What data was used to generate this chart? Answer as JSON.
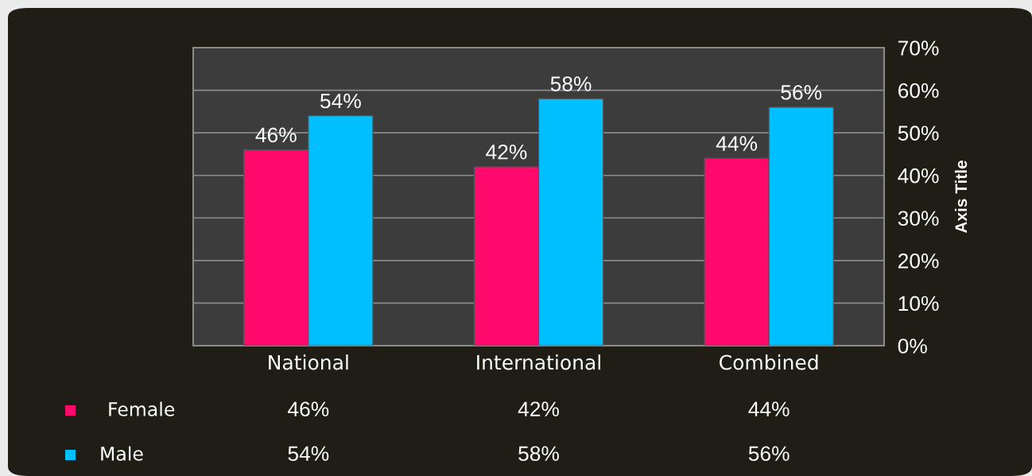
{
  "chart_data": {
    "type": "bar",
    "ylabel": "Axis Title",
    "categories": [
      "National",
      "International",
      "Combined"
    ],
    "series": [
      {
        "name": "Female",
        "color": "#ff0a6c",
        "values": [
          46,
          42,
          44
        ],
        "value_labels": [
          "46%",
          "42%",
          "44%"
        ]
      },
      {
        "name": "Male",
        "color": "#00bfff",
        "values": [
          54,
          58,
          56
        ],
        "value_labels": [
          "54%",
          "58%",
          "56%"
        ]
      }
    ],
    "ylim": [
      0,
      70
    ],
    "yticks": [
      {
        "value": 0,
        "label": "0%"
      },
      {
        "value": 10,
        "label": "10%"
      },
      {
        "value": 20,
        "label": "20%"
      },
      {
        "value": 30,
        "label": "30%"
      },
      {
        "value": 40,
        "label": "40%"
      },
      {
        "value": 50,
        "label": "50%"
      },
      {
        "value": 60,
        "label": "60%"
      },
      {
        "value": 70,
        "label": "70%"
      }
    ],
    "grid": "y",
    "legend": "bottom left"
  }
}
